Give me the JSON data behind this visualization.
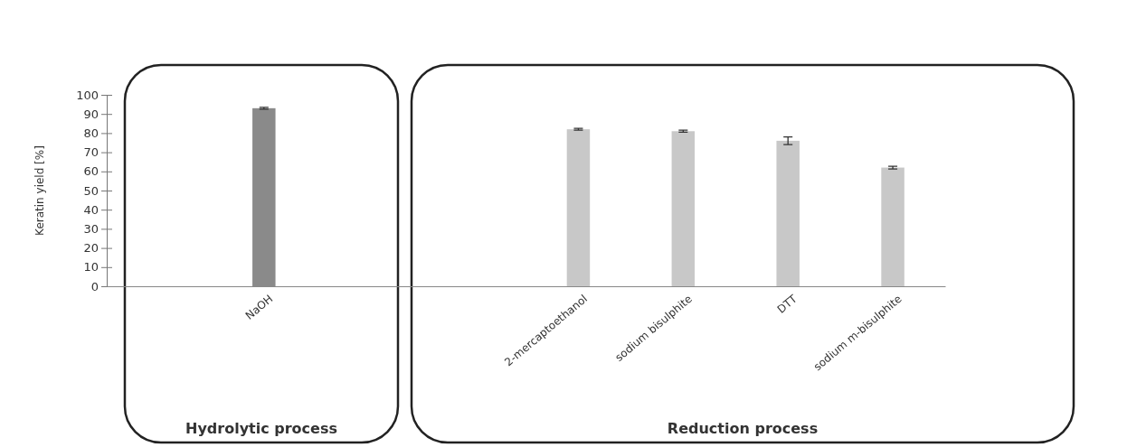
{
  "chart_data": {
    "type": "bar",
    "ylabel": "Keratin yield [%]",
    "categories": [
      null,
      "NaOH",
      null,
      null,
      "2-mercaptoethanol",
      "sodium bisulphite",
      "DTT",
      "sodium m-bisulphite"
    ],
    "values": [
      null,
      93,
      null,
      null,
      82,
      81,
      76,
      62
    ],
    "errors": [
      null,
      0.5,
      null,
      null,
      0.5,
      0.5,
      2,
      0.7
    ],
    "colors": [
      null,
      "#8a8a8a",
      null,
      null,
      "#c8c8c8",
      "#c8c8c8",
      "#c8c8c8",
      "#c8c8c8"
    ],
    "ylim": [
      0,
      100
    ],
    "yticks": [
      0,
      10,
      20,
      30,
      40,
      50,
      60,
      70,
      80,
      90,
      100
    ],
    "grid": false,
    "annotations": [
      "Hydrolytic process",
      "Reduction process"
    ]
  }
}
